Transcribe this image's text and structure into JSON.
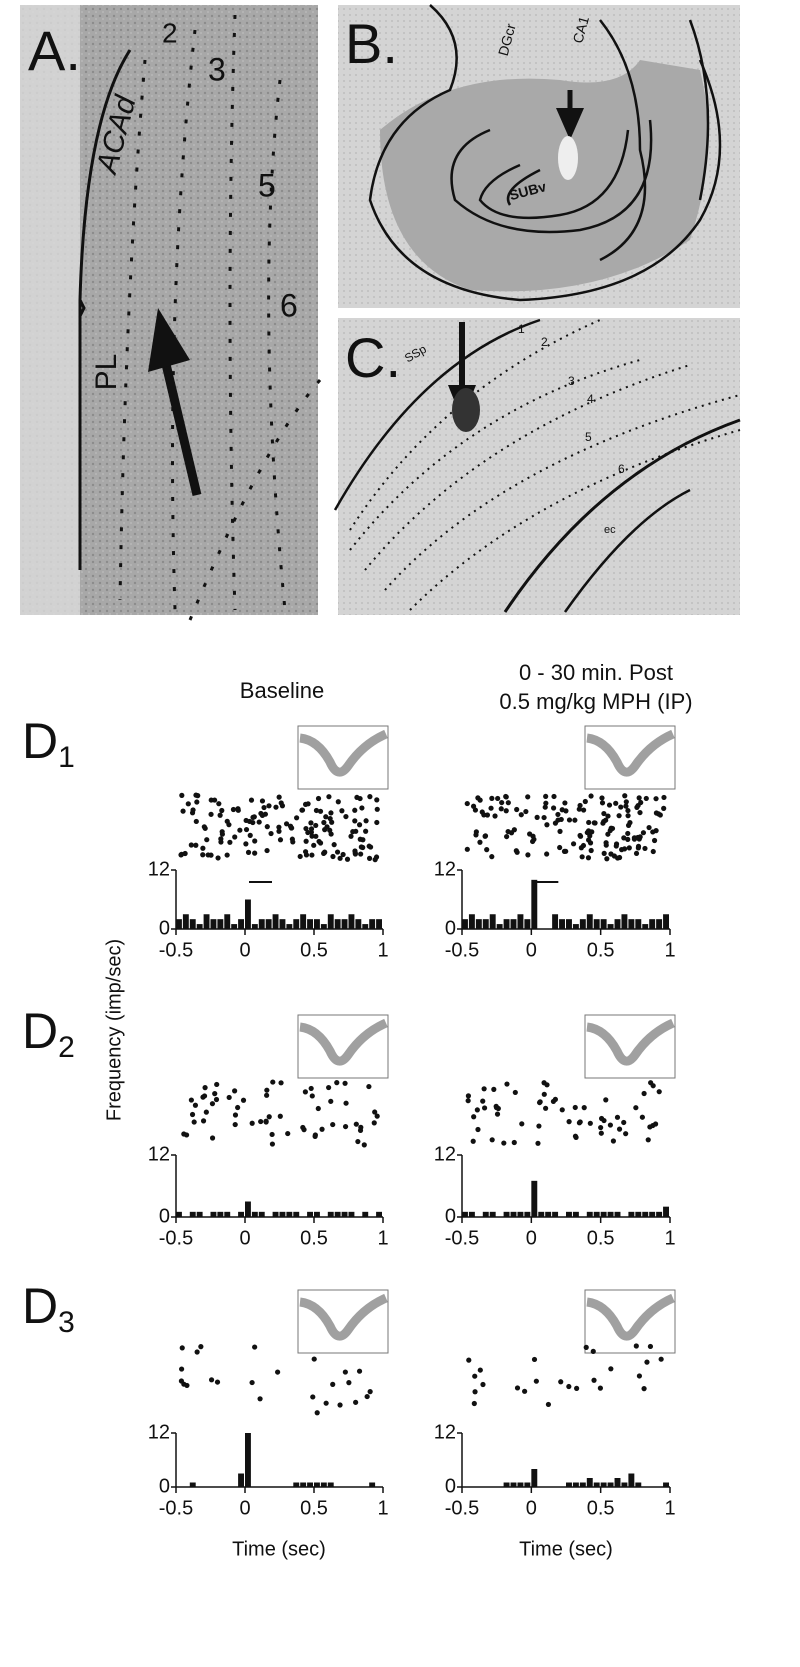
{
  "panel_a": {
    "label": "A.",
    "layers": [
      "2",
      "3",
      "5",
      "6"
    ],
    "regions": [
      "ACAd",
      "PL"
    ]
  },
  "panel_b": {
    "label": "B.",
    "regions": [
      "DGcr",
      "CA1",
      "SUBv"
    ]
  },
  "panel_c": {
    "label": "C.",
    "layers": [
      "1",
      "2",
      "3",
      "4",
      "5",
      "6"
    ],
    "regions": [
      "SSp",
      "ec"
    ]
  },
  "columns": {
    "baseline": "Baseline",
    "post_line1": "0 - 30 min. Post",
    "post_line2": "0.5 mg/kg MPH (IP)"
  },
  "rows": [
    {
      "letter": "D",
      "sub": "1"
    },
    {
      "letter": "D",
      "sub": "2"
    },
    {
      "letter": "D",
      "sub": "3"
    }
  ],
  "y_axis_label": "Frequency (imp/sec)",
  "x_axis_label": "Time (sec)",
  "chart_data": [
    {
      "type": "histogram",
      "bins": [
        -0.5,
        -0.45,
        -0.4,
        -0.35,
        -0.3,
        -0.25,
        -0.2,
        -0.15,
        -0.1,
        -0.05,
        0,
        0.05,
        0.1,
        0.15,
        0.2,
        0.25,
        0.3,
        0.35,
        0.4,
        0.45,
        0.5,
        0.55,
        0.6,
        0.65,
        0.7,
        0.75,
        0.8,
        0.85,
        0.9,
        0.95,
        1
      ],
      "values": [
        2,
        3,
        2,
        1,
        3,
        2,
        2,
        3,
        1,
        2,
        6,
        1,
        2,
        2,
        3,
        2,
        1,
        2,
        3,
        2,
        2,
        1,
        3,
        2,
        2,
        3,
        2,
        1,
        2,
        2
      ],
      "color": "#111111",
      "xlim": [
        -0.5,
        1
      ],
      "xticks": [
        -0.5,
        0,
        0.5,
        1
      ],
      "ylim": [
        0,
        12
      ],
      "yticks": [
        0,
        12
      ]
    },
    {
      "type": "histogram",
      "bins": [
        -0.5,
        -0.45,
        -0.4,
        -0.35,
        -0.3,
        -0.25,
        -0.2,
        -0.15,
        -0.1,
        -0.05,
        0,
        0.05,
        0.1,
        0.15,
        0.2,
        0.25,
        0.3,
        0.35,
        0.4,
        0.45,
        0.5,
        0.55,
        0.6,
        0.65,
        0.7,
        0.75,
        0.8,
        0.85,
        0.9,
        0.95,
        1
      ],
      "values": [
        2,
        3,
        2,
        2,
        3,
        1,
        2,
        2,
        3,
        2,
        10,
        0,
        0,
        3,
        2,
        2,
        1,
        2,
        3,
        2,
        2,
        1,
        2,
        3,
        2,
        2,
        1,
        2,
        2,
        3
      ],
      "color": "#111111",
      "xlim": [
        -0.5,
        1
      ],
      "xticks": [
        -0.5,
        0,
        0.5,
        1
      ],
      "ylim": [
        0,
        12
      ],
      "yticks": [
        0,
        12
      ]
    },
    {
      "type": "histogram",
      "bins": [
        -0.5,
        -0.45,
        -0.4,
        -0.35,
        -0.3,
        -0.25,
        -0.2,
        -0.15,
        -0.1,
        -0.05,
        0,
        0.05,
        0.1,
        0.15,
        0.2,
        0.25,
        0.3,
        0.35,
        0.4,
        0.45,
        0.5,
        0.55,
        0.6,
        0.65,
        0.7,
        0.75,
        0.8,
        0.85,
        0.9,
        0.95,
        1
      ],
      "values": [
        1,
        0,
        1,
        1,
        0,
        1,
        1,
        1,
        0,
        1,
        3,
        1,
        1,
        0,
        1,
        1,
        1,
        1,
        0,
        1,
        1,
        0,
        1,
        1,
        1,
        1,
        0,
        1,
        0,
        1
      ],
      "color": "#111111",
      "xlim": [
        -0.5,
        1
      ],
      "xticks": [
        -0.5,
        0,
        0.5,
        1
      ],
      "ylim": [
        0,
        12
      ],
      "yticks": [
        0,
        12
      ]
    },
    {
      "type": "histogram",
      "bins": [
        -0.5,
        -0.45,
        -0.4,
        -0.35,
        -0.3,
        -0.25,
        -0.2,
        -0.15,
        -0.1,
        -0.05,
        0,
        0.05,
        0.1,
        0.15,
        0.2,
        0.25,
        0.3,
        0.35,
        0.4,
        0.45,
        0.5,
        0.55,
        0.6,
        0.65,
        0.7,
        0.75,
        0.8,
        0.85,
        0.9,
        0.95,
        1
      ],
      "values": [
        1,
        1,
        0,
        1,
        1,
        0,
        1,
        1,
        1,
        1,
        7,
        1,
        1,
        1,
        0,
        1,
        1,
        0,
        1,
        1,
        1,
        1,
        1,
        0,
        1,
        1,
        1,
        1,
        1,
        2
      ],
      "color": "#111111",
      "xlim": [
        -0.5,
        1
      ],
      "xticks": [
        -0.5,
        0,
        0.5,
        1
      ],
      "ylim": [
        0,
        12
      ],
      "yticks": [
        0,
        12
      ]
    },
    {
      "type": "histogram",
      "bins": [
        -0.5,
        -0.45,
        -0.4,
        -0.35,
        -0.3,
        -0.25,
        -0.2,
        -0.15,
        -0.1,
        -0.05,
        0,
        0.05,
        0.1,
        0.15,
        0.2,
        0.25,
        0.3,
        0.35,
        0.4,
        0.45,
        0.5,
        0.55,
        0.6,
        0.65,
        0.7,
        0.75,
        0.8,
        0.85,
        0.9,
        0.95,
        1
      ],
      "values": [
        0,
        0,
        1,
        0,
        0,
        0,
        0,
        0,
        0,
        3,
        12,
        0,
        0,
        0,
        0,
        0,
        0,
        1,
        1,
        1,
        1,
        1,
        1,
        0,
        0,
        0,
        0,
        0,
        1,
        0
      ],
      "color": "#111111",
      "xlim": [
        -0.5,
        1
      ],
      "xticks": [
        -0.5,
        0,
        0.5,
        1
      ],
      "ylim": [
        0,
        12
      ],
      "yticks": [
        0,
        12
      ]
    },
    {
      "type": "histogram",
      "bins": [
        -0.5,
        -0.45,
        -0.4,
        -0.35,
        -0.3,
        -0.25,
        -0.2,
        -0.15,
        -0.1,
        -0.05,
        0,
        0.05,
        0.1,
        0.15,
        0.2,
        0.25,
        0.3,
        0.35,
        0.4,
        0.45,
        0.5,
        0.55,
        0.6,
        0.65,
        0.7,
        0.75,
        0.8,
        0.85,
        0.9,
        0.95,
        1
      ],
      "values": [
        0,
        0,
        0,
        0,
        0,
        0,
        1,
        1,
        1,
        1,
        4,
        0,
        0,
        0,
        0,
        1,
        1,
        1,
        2,
        1,
        1,
        1,
        2,
        1,
        3,
        1,
        0,
        0,
        0,
        1
      ],
      "color": "#111111",
      "xlim": [
        -0.5,
        1
      ],
      "xticks": [
        -0.5,
        0,
        0.5,
        1
      ],
      "ylim": [
        0,
        12
      ],
      "yticks": [
        0,
        12
      ]
    }
  ]
}
